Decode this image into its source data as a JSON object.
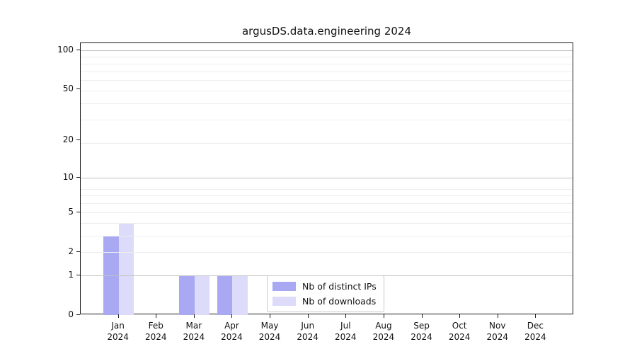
{
  "figure": {
    "title": "argusDS.data.engineering 2024"
  },
  "chart_data": {
    "type": "bar",
    "title": "argusDS.data.engineering 2024",
    "categories": [
      "Jan",
      "Feb",
      "Mar",
      "Apr",
      "May",
      "Jun",
      "Jul",
      "Aug",
      "Sep",
      "Oct",
      "Nov",
      "Dec"
    ],
    "category_year": "2024",
    "series": [
      {
        "name": "Nb of distinct IPs",
        "color": "#a9a9f3",
        "values": [
          3,
          0,
          1,
          1,
          0,
          0,
          0,
          0,
          0,
          0,
          0,
          0
        ]
      },
      {
        "name": "Nb of downloads",
        "color": "#dcdcfa",
        "values": [
          4,
          0,
          1,
          1,
          0,
          0,
          0,
          0,
          0,
          0,
          0,
          0
        ]
      }
    ],
    "xlabel": "",
    "ylabel": "",
    "y_axis": {
      "scale": "log1p",
      "ticks": [
        0,
        1,
        2,
        5,
        10,
        20,
        50,
        100
      ],
      "ylim": [
        0,
        113
      ]
    },
    "grid": true,
    "legend": {
      "position": "lower-center",
      "entries": [
        "Nb of distinct IPs",
        "Nb of downloads"
      ]
    }
  }
}
